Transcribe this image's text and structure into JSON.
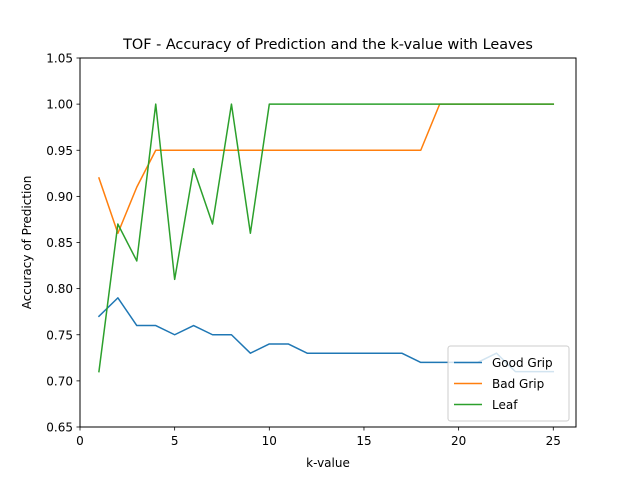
{
  "chart_data": {
    "type": "line",
    "title": "TOF - Accuracy of Prediction and the k-value with Leaves",
    "xlabel": "k-value",
    "ylabel": "Accuracy of Prediction",
    "xlim": [
      0,
      26.2
    ],
    "ylim": [
      0.65,
      1.05
    ],
    "xticks": [
      0,
      5,
      10,
      15,
      20,
      25
    ],
    "xtick_labels": [
      "0",
      "5",
      "10",
      "15",
      "20",
      "25"
    ],
    "yticks": [
      0.65,
      0.7,
      0.75,
      0.8,
      0.85,
      0.9,
      0.95,
      1.0,
      1.05
    ],
    "ytick_labels": [
      "0.65",
      "0.70",
      "0.75",
      "0.80",
      "0.85",
      "0.90",
      "0.95",
      "1.00",
      "1.05"
    ],
    "grid": false,
    "legend_position": "lower-right",
    "x": [
      1,
      2,
      3,
      4,
      5,
      6,
      7,
      8,
      9,
      10,
      11,
      12,
      13,
      14,
      15,
      16,
      17,
      18,
      19,
      20,
      21,
      22,
      23,
      24,
      25
    ],
    "series": [
      {
        "name": "Good Grip",
        "color": "#1f77b4",
        "values": [
          0.77,
          0.79,
          0.76,
          0.76,
          0.75,
          0.76,
          0.75,
          0.75,
          0.73,
          0.74,
          0.74,
          0.73,
          0.73,
          0.73,
          0.73,
          0.73,
          0.73,
          0.72,
          0.72,
          0.72,
          0.72,
          0.73,
          0.71,
          0.71,
          0.71
        ]
      },
      {
        "name": "Bad Grip",
        "color": "#ff7f0e",
        "values": [
          0.92,
          0.86,
          0.91,
          0.95,
          0.95,
          0.95,
          0.95,
          0.95,
          0.95,
          0.95,
          0.95,
          0.95,
          0.95,
          0.95,
          0.95,
          0.95,
          0.95,
          0.95,
          1.0,
          1.0,
          1.0,
          1.0,
          1.0,
          1.0,
          1.0
        ]
      },
      {
        "name": "Leaf",
        "color": "#2ca02c",
        "values": [
          0.71,
          0.87,
          0.83,
          1.0,
          0.81,
          0.93,
          0.87,
          1.0,
          0.86,
          1.0,
          1.0,
          1.0,
          1.0,
          1.0,
          1.0,
          1.0,
          1.0,
          1.0,
          1.0,
          1.0,
          1.0,
          1.0,
          1.0,
          1.0,
          1.0
        ]
      }
    ]
  }
}
